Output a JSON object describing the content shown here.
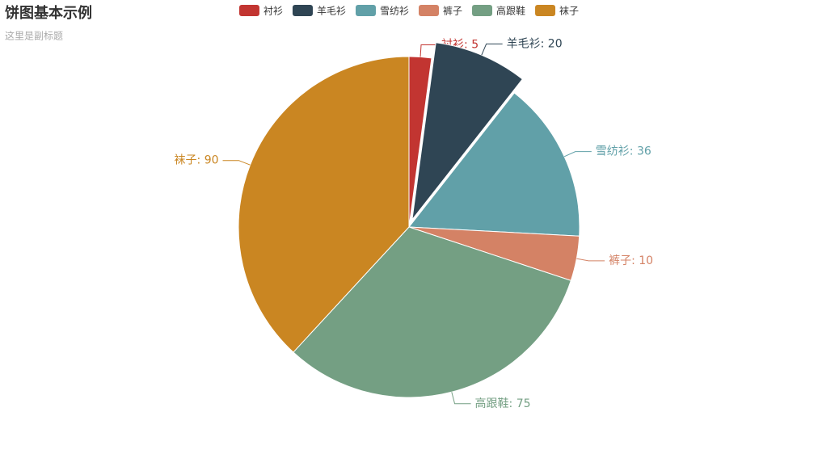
{
  "chart_data": {
    "type": "pie",
    "title": "饼图基本示例",
    "subtitle": "这里是副标题",
    "categories": [
      "衬衫",
      "羊毛衫",
      "雪纺衫",
      "裤子",
      "高跟鞋",
      "袜子"
    ],
    "values": [
      5,
      20,
      36,
      10,
      75,
      90
    ],
    "value_labels": [
      "衬衫: 5",
      "羊毛衫: 20",
      "雪纺衫: 36",
      "裤子: 10",
      "高跟鞋: 75",
      "袜子: 90"
    ],
    "colors": [
      "#c23531",
      "#2f4554",
      "#61a0a8",
      "#d48265",
      "#749f83",
      "#ca8622"
    ],
    "legend": "top",
    "selected_index": 1
  }
}
